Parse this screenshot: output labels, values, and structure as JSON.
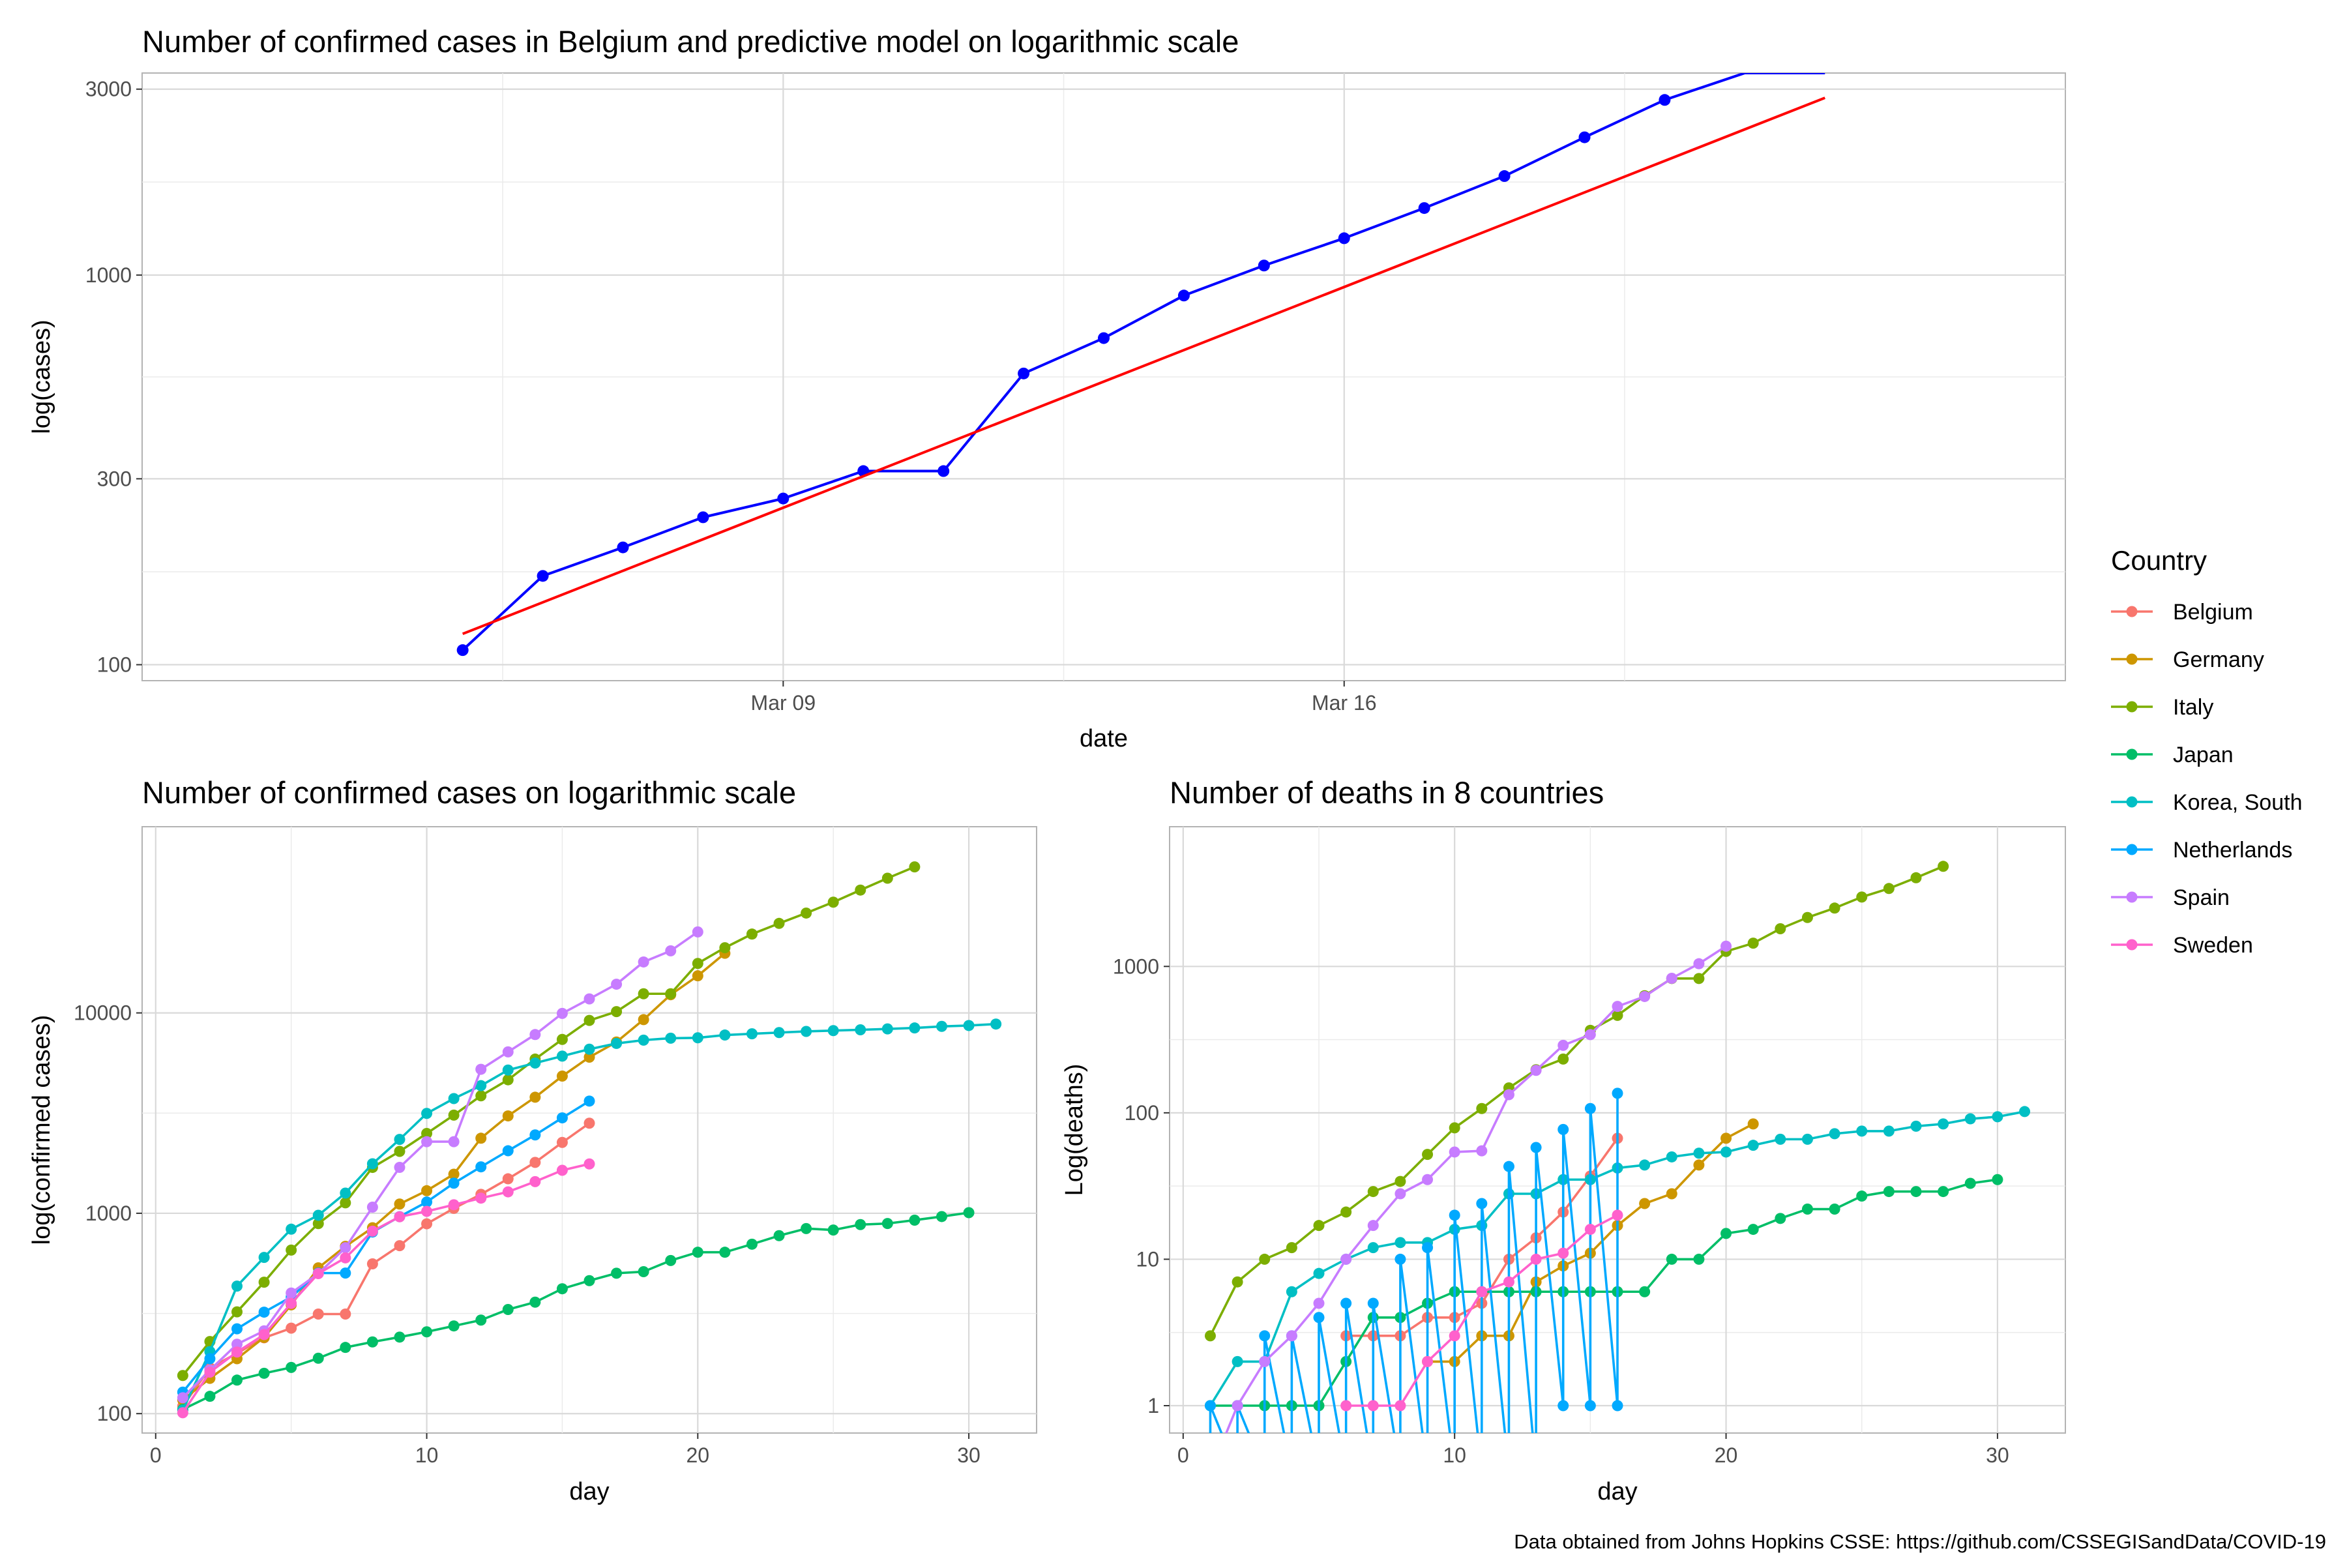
{
  "caption": "Data obtained from Johns Hopkins CSSE: https://github.com/CSSEGISandData/COVID-19",
  "legend": {
    "title": "Country",
    "items": [
      {
        "label": "Belgium",
        "color": "#F8766D"
      },
      {
        "label": "Germany",
        "color": "#CD9600"
      },
      {
        "label": "Italy",
        "color": "#7CAE00"
      },
      {
        "label": "Japan",
        "color": "#00BE67"
      },
      {
        "label": "Korea, South",
        "color": "#00BFC4"
      },
      {
        "label": "Netherlands",
        "color": "#00A9FF"
      },
      {
        "label": "Spain",
        "color": "#C77CFF"
      },
      {
        "label": "Sweden",
        "color": "#FF61CC"
      }
    ]
  },
  "chart_data": [
    {
      "type": "line",
      "title": "Number of confirmed cases in Belgium and predictive model on logarithmic scale",
      "xlabel": "date",
      "ylabel": "log(cases)",
      "x_scale": "date",
      "y_scale": "log",
      "xlim": [
        "2020-03-01",
        "2020-03-25"
      ],
      "ylim": [
        91,
        3300
      ],
      "x_ticks": [
        {
          "value": "2020-03-09",
          "label": "Mar 09"
        },
        {
          "value": "2020-03-16",
          "label": "Mar 16"
        }
      ],
      "y_ticks": [
        {
          "value": 100,
          "label": "100"
        },
        {
          "value": 300,
          "label": "300"
        },
        {
          "value": 1000,
          "label": "1000"
        },
        {
          "value": 3000,
          "label": "3000"
        }
      ],
      "grid": true,
      "series": [
        {
          "color": "#0000FF",
          "points": true,
          "x": [
            "2020-03-05",
            "2020-03-06",
            "2020-03-07",
            "2020-03-08",
            "2020-03-09",
            "2020-03-10",
            "2020-03-11",
            "2020-03-12",
            "2020-03-13",
            "2020-03-14",
            "2020-03-15",
            "2020-03-16",
            "2020-03-17",
            "2020-03-18",
            "2020-03-19",
            "2020-03-20",
            "2020-03-21",
            "2020-03-22"
          ],
          "y": [
            109,
            169,
            200,
            239,
            267,
            314,
            314,
            559,
            689,
            886,
            1058,
            1243,
            1486,
            1795,
            2257,
            2815,
            3401,
            3743
          ]
        },
        {
          "color": "#FF0000",
          "points": false,
          "x": [
            "2020-03-05",
            "2020-03-22"
          ],
          "y": [
            120,
            2850
          ]
        }
      ]
    },
    {
      "type": "line",
      "title": "Number of confirmed cases on logarithmic scale",
      "xlabel": "day",
      "ylabel": "log(confirmed cases)",
      "y_scale": "log",
      "xlim": [
        -0.5,
        32.5
      ],
      "ylim": [
        80,
        85000
      ],
      "x_ticks": [
        0,
        10,
        20,
        30
      ],
      "y_ticks": [
        {
          "value": 100,
          "label": "100"
        },
        {
          "value": 1000,
          "label": "1000"
        },
        {
          "value": 10000,
          "label": "10000"
        }
      ],
      "grid": true,
      "series": [
        {
          "name": "Belgium",
          "x": [
            1,
            2,
            3,
            4,
            5,
            6,
            7,
            8,
            9,
            10,
            11,
            12,
            13,
            14,
            15,
            16
          ],
          "y": [
            109,
            169,
            200,
            239,
            267,
            314,
            314,
            559,
            689,
            886,
            1058,
            1243,
            1486,
            1795,
            2257,
            2815
          ]
        },
        {
          "name": "Germany",
          "x": [
            1,
            2,
            3,
            4,
            5,
            6,
            7,
            8,
            9,
            10,
            11,
            12,
            13,
            14,
            15,
            16,
            17,
            18,
            19,
            20,
            21
          ],
          "y": [
            117,
            150,
            188,
            240,
            349,
            534,
            684,
            847,
            1112,
            1296,
            1567,
            2369,
            3062,
            3795,
            4838,
            6012,
            7156,
            9257,
            12327,
            15320,
            19848
          ]
        },
        {
          "name": "Italy",
          "x": [
            1,
            2,
            3,
            4,
            5,
            6,
            7,
            8,
            9,
            10,
            11,
            12,
            13,
            14,
            15,
            16,
            17,
            18,
            19,
            20,
            21,
            22,
            23,
            24,
            25,
            26,
            27,
            28
          ],
          "y": [
            155,
            229,
            322,
            453,
            655,
            888,
            1128,
            1694,
            2036,
            2502,
            3089,
            3858,
            4636,
            5883,
            7375,
            9172,
            10149,
            12462,
            12462,
            17660,
            21157,
            24747,
            27980,
            31506,
            35713,
            41035,
            47021,
            53578
          ]
        },
        {
          "name": "Japan",
          "x": [
            1,
            2,
            3,
            4,
            5,
            6,
            7,
            8,
            9,
            10,
            11,
            12,
            13,
            14,
            15,
            16,
            17,
            18,
            19,
            20,
            21,
            22,
            23,
            24,
            25,
            26,
            27,
            28,
            29,
            30
          ],
          "y": [
            105,
            122,
            147,
            159,
            170,
            189,
            214,
            228,
            241,
            256,
            274,
            293,
            331,
            360,
            420,
            461,
            502,
            511,
            581,
            639,
            639,
            701,
            773,
            839,
            825,
            878,
            889,
            924,
            963,
            1007
          ]
        },
        {
          "name": "Korea, South",
          "x": [
            1,
            2,
            3,
            4,
            5,
            6,
            7,
            8,
            9,
            10,
            11,
            12,
            13,
            14,
            15,
            16,
            17,
            18,
            19,
            20,
            21,
            22,
            23,
            24,
            25,
            26,
            27,
            28,
            29,
            30,
            31
          ],
          "y": [
            104,
            204,
            433,
            602,
            833,
            977,
            1261,
            1766,
            2337,
            3150,
            3736,
            4335,
            5186,
            5621,
            6088,
            6593,
            7041,
            7314,
            7478,
            7513,
            7755,
            7869,
            7979,
            8086,
            8162,
            8236,
            8320,
            8413,
            8565,
            8652,
            8799
          ]
        },
        {
          "name": "Netherlands",
          "x": [
            1,
            2,
            3,
            4,
            5,
            6,
            7,
            8,
            9,
            10,
            11,
            12,
            13,
            14,
            15,
            16
          ],
          "y": [
            128,
            188,
            265,
            321,
            382,
            503,
            503,
            806,
            962,
            1138,
            1413,
            1705,
            2051,
            2460,
            2994,
            3631
          ]
        },
        {
          "name": "Spain",
          "x": [
            1,
            2,
            3,
            4,
            5,
            6,
            7,
            8,
            9,
            10,
            11,
            12,
            13,
            14,
            15,
            16,
            17,
            18,
            19,
            20
          ],
          "y": [
            120,
            165,
            222,
            259,
            400,
            500,
            673,
            1073,
            1695,
            2277,
            2277,
            5232,
            6391,
            7798,
            9942,
            11748,
            13910,
            17963,
            20410,
            25374
          ]
        },
        {
          "name": "Sweden",
          "x": [
            1,
            2,
            3,
            4,
            5,
            6,
            7,
            8,
            9,
            10,
            11,
            12,
            13,
            14,
            15,
            16
          ],
          "y": [
            101,
            161,
            203,
            248,
            355,
            500,
            599,
            814,
            961,
            1022,
            1103,
            1190,
            1279,
            1439,
            1639,
            1763
          ]
        }
      ]
    },
    {
      "type": "line",
      "title": "Number of deaths in 8 countries",
      "xlabel": "day",
      "ylabel": "Log(deaths)",
      "y_scale": "log",
      "xlim": [
        -0.5,
        32.5
      ],
      "ylim": [
        0.65,
        9000
      ],
      "x_ticks": [
        0,
        10,
        20,
        30
      ],
      "y_ticks": [
        {
          "value": 1,
          "label": "1"
        },
        {
          "value": 10,
          "label": "10"
        },
        {
          "value": 100,
          "label": "100"
        },
        {
          "value": 1000,
          "label": "1000"
        }
      ],
      "grid": true,
      "series": [
        {
          "name": "Belgium",
          "x": [
            6,
            7,
            8,
            9,
            10,
            11,
            12,
            13,
            14,
            15,
            16
          ],
          "y": [
            3,
            3,
            3,
            4,
            4,
            5,
            10,
            14,
            21,
            37,
            67
          ]
        },
        {
          "name": "Germany",
          "x": [
            9,
            10,
            11,
            12,
            13,
            14,
            15,
            16,
            17,
            18,
            19,
            20,
            21
          ],
          "y": [
            2,
            2,
            3,
            3,
            7,
            9,
            11,
            17,
            24,
            28,
            44,
            67,
            84
          ]
        },
        {
          "name": "Italy",
          "x": [
            1,
            2,
            3,
            4,
            5,
            6,
            7,
            8,
            9,
            10,
            11,
            12,
            13,
            14,
            15,
            16,
            17,
            18,
            19,
            20,
            21,
            22,
            23,
            24,
            25,
            26,
            27,
            28
          ],
          "y": [
            3,
            7,
            10,
            12,
            17,
            21,
            29,
            34,
            52,
            79,
            107,
            148,
            197,
            233,
            366,
            463,
            631,
            827,
            827,
            1266,
            1441,
            1809,
            2158,
            2503,
            2978,
            3405,
            4032,
            4825
          ]
        },
        {
          "name": "Japan",
          "x": [
            1,
            2,
            3,
            4,
            5,
            6,
            7,
            8,
            9,
            10,
            11,
            12,
            13,
            14,
            15,
            16,
            17,
            18,
            19,
            20,
            21,
            22,
            23,
            24,
            25,
            26,
            27,
            28,
            29,
            30
          ],
          "y": [
            1,
            1,
            1,
            1,
            1,
            2,
            4,
            4,
            5,
            6,
            6,
            6,
            6,
            6,
            6,
            6,
            6,
            10,
            10,
            15,
            16,
            19,
            22,
            22,
            27,
            29,
            29,
            29,
            33,
            35
          ]
        },
        {
          "name": "Korea, South",
          "x": [
            1,
            2,
            3,
            4,
            5,
            6,
            7,
            8,
            9,
            10,
            11,
            12,
            13,
            14,
            15,
            16,
            17,
            18,
            19,
            20,
            21,
            22,
            23,
            24,
            25,
            26,
            27,
            28,
            29,
            30,
            31
          ],
          "y": [
            1,
            2,
            2,
            6,
            8,
            10,
            12,
            13,
            13,
            16,
            17,
            28,
            28,
            35,
            35,
            42,
            44,
            50,
            53,
            54,
            60,
            66,
            66,
            72,
            75,
            75,
            81,
            84,
            91,
            94,
            102
          ]
        },
        {
          "name": "Netherlands",
          "x": [
            1,
            1,
            2,
            2,
            3,
            3,
            4,
            4,
            5,
            5,
            6,
            6,
            7,
            7,
            8,
            8,
            9,
            9,
            10,
            10,
            11,
            11,
            12,
            12,
            13,
            13,
            14,
            14,
            15,
            15,
            16,
            16
          ],
          "y": [
            0,
            1,
            0,
            1,
            0,
            3,
            0,
            3,
            0,
            4,
            0,
            5,
            0,
            5,
            0,
            10,
            0,
            12,
            0,
            20,
            0,
            24,
            0,
            43,
            0,
            58,
            1,
            77,
            1,
            107,
            1,
            136
          ]
        },
        {
          "name": "Spain",
          "x": [
            1,
            2,
            3,
            4,
            5,
            6,
            7,
            8,
            9,
            10,
            11,
            12,
            13,
            14,
            15,
            16,
            17,
            18,
            19,
            20
          ],
          "y": [
            0,
            1,
            2,
            3,
            5,
            10,
            17,
            28,
            35,
            54,
            55,
            133,
            195,
            289,
            342,
            533,
            623,
            830,
            1043,
            1375
          ]
        },
        {
          "name": "Sweden",
          "x": [
            6,
            7,
            8,
            9,
            10,
            11,
            12,
            13,
            14,
            15,
            16
          ],
          "y": [
            1,
            1,
            1,
            2,
            3,
            6,
            7,
            10,
            11,
            16,
            20
          ]
        }
      ]
    }
  ]
}
